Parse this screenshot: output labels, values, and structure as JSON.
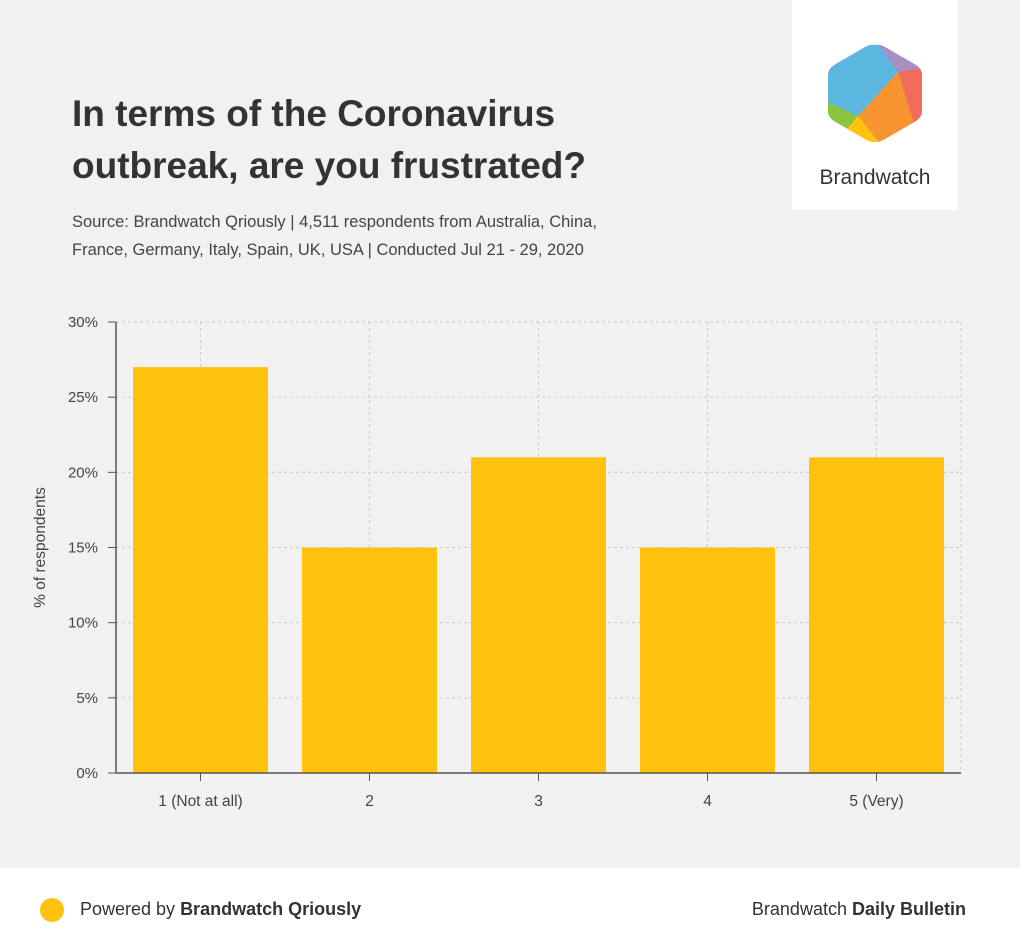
{
  "title_lines": [
    "In terms of the Coronavirus",
    "outbreak, are you frustrated?"
  ],
  "subtitle_lines": [
    "Source: Brandwatch Qriously | 4,511 respondents from Australia, China,",
    "France, Germany, Italy, Spain, UK, USA | Conducted Jul 21 - 29, 2020"
  ],
  "logo": {
    "text": "Brandwatch"
  },
  "footer": {
    "left_prefix": "Powered by ",
    "left_bold": "Brandwatch Qriously",
    "right_prefix": "Brandwatch ",
    "right_bold": "Daily Bulletin"
  },
  "colors": {
    "bar": "#FFC20E",
    "background": "#f1f1f1",
    "grid": "#cccccc",
    "axis": "#555555"
  },
  "chart_data": {
    "type": "bar",
    "categories": [
      "1 (Not at all)",
      "2",
      "3",
      "4",
      "5 (Very)"
    ],
    "values": [
      27,
      15,
      21,
      15,
      21
    ],
    "ylabel": "% of respondents",
    "ylim": [
      0,
      30
    ],
    "yticks": [
      0,
      5,
      10,
      15,
      20,
      25,
      30
    ],
    "ytick_labels": [
      "0%",
      "5%",
      "10%",
      "15%",
      "20%",
      "25%",
      "30%"
    ],
    "grid": true
  }
}
